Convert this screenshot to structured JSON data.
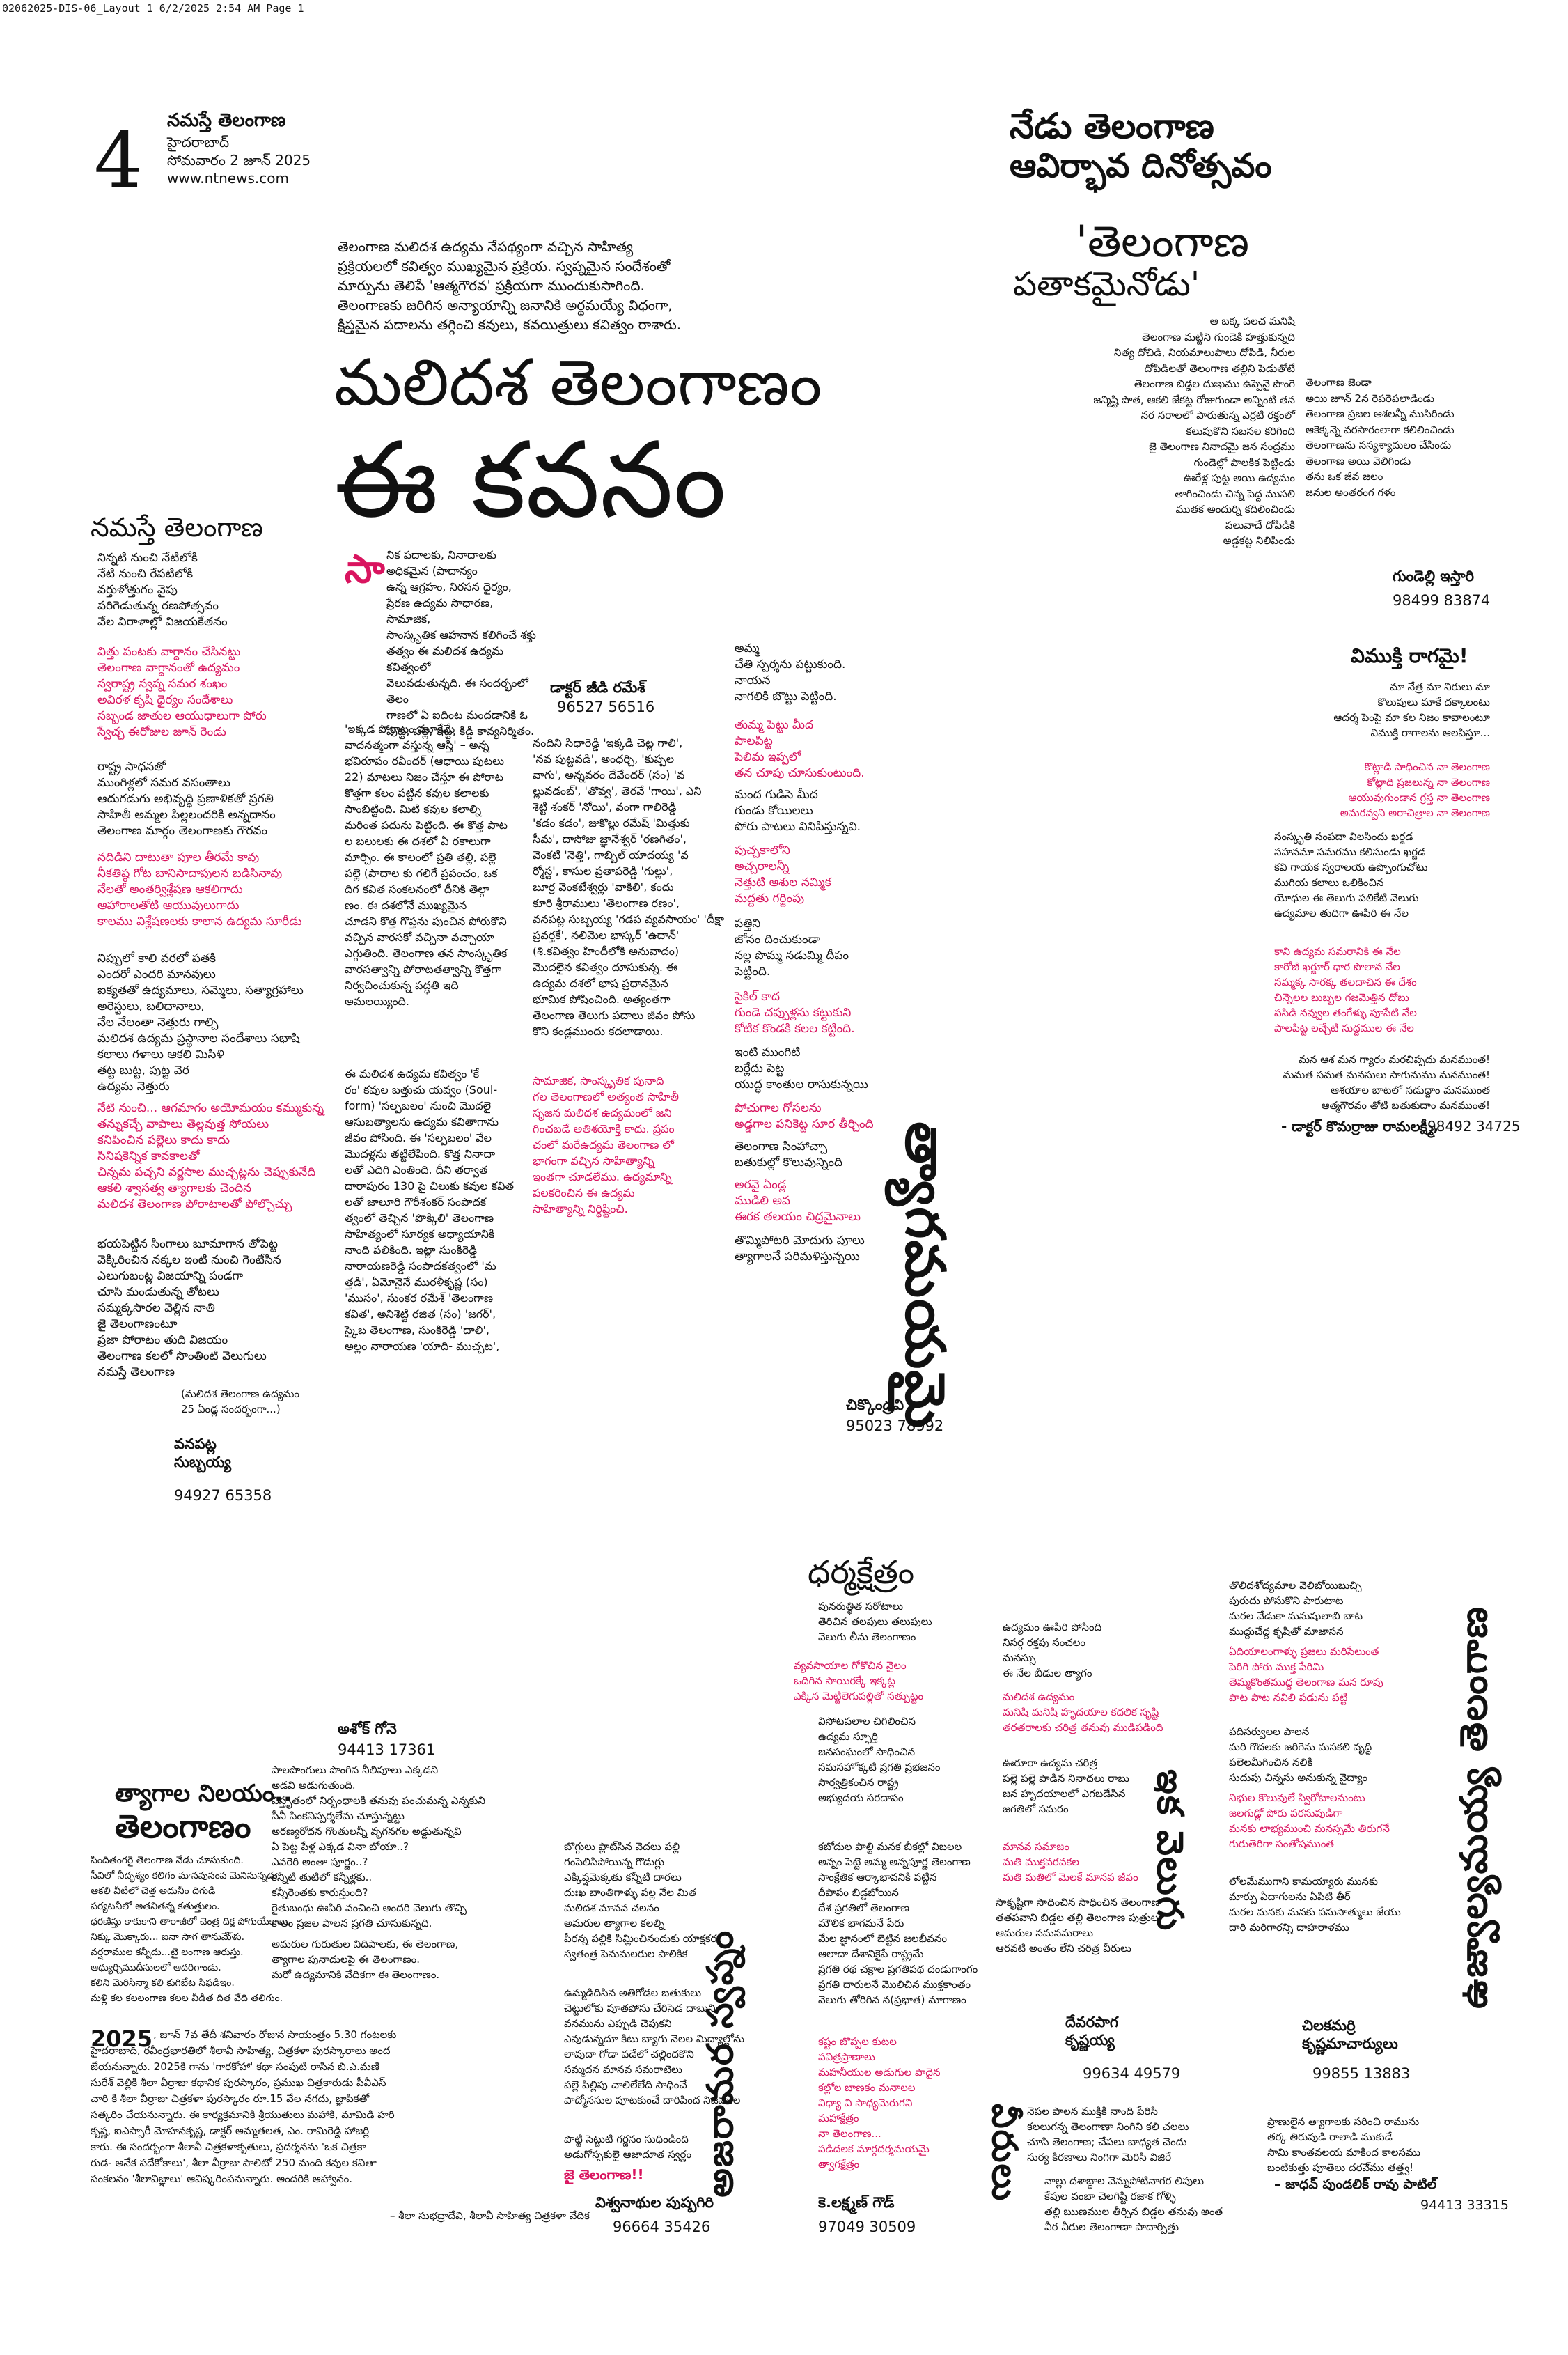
{
  "print_header": "02062025-DIS-06_Layout 1  6/2/2025  2:54 AM  Page 1",
  "masthead": {
    "page_number": "4",
    "paper_name": "నమస్తే తెలంగాణ",
    "city": "హైదరాబాద్",
    "date": "సోమవారం 2 జూన్ 2025",
    "website": "www.ntnews.com"
  },
  "event_title": {
    "line1": "నేడు తెలంగాణ",
    "line2": "ఆవిర్భావ దినోత్సవం"
  },
  "intro": "తెలంగాణ మలిదశ ఉద్యమ నేపథ్యంగా వచ్చిన సాహిత్య\nప్రక్రియలలో కవిత్వం ముఖ్యమైన ప్రక్రియ. స్వప్నమైన సందేశంతో\nమార్పును తెలిపే 'ఆత్మగౌరవ' ప్రక్రియగా ముందుకుసాగింది.\nతెలంగాణకు జరిగిన అన్యాయాన్ని జనానికి అర్థమయ్యే విధంగా,\nక్షిప్తమైన పదాలను తగ్గించి కవులు, కవయిత్రులు కవిత్వం రాశారు.",
  "main_title": {
    "line1": "మలిదశ తెలంగాణం",
    "line2": "ఈ కవనం"
  },
  "poems": {
    "namaste": {
      "title": "నమస్తే తెలంగాణ",
      "stanza1": "నిన్నటి నుంచి నేటిలోకి\nనేటి నుంచి రేపటిలోకి\nవర్తుళోత్తుగం వైపు\nపరిగెడుతున్న రణపోత్సవం\nవేల విరాళాల్లో విజయకేతనం",
      "red1": "విత్తు పంటకు వాగ్దానం చేసినట్టు\nతెలంగాణ వాగ్దానంతో ఉద్యమం\nస్వరాష్ట్ర స్వప్న సమర శంఖం\nఅవిరళ కృషి ధైర్యం సందేశాలు\nసబ్బండ జాతుల ఆయుధాలుగా పోరు\nస్వేచ్ఛ ఈరోజుల జూన్ రెండు",
      "stanza2": "రాష్ట్ర సాధనతో\nముంగిళ్లలో సమర వసంతాలు\nఆదుగడుగు అభివృద్ధి ప్రణాళికతో ప్రగతి\nసాహితీ అమ్మల పిల్లలందరికి అన్నదానం\nతెలంగాణ మార్గం తెలంగాణకు గౌరవం",
      "red2": "నదిడిని దాటుతా పూల తీరమే కావు\nనీకతిష్ఠ గోట బానిసాదాపులన బడిసినావు\nనేలతో అంతర్విశ్లేషణ ఆకలిగాదు\nఆహారాలతోటి ఆయువులుగాదు\nకాలము విశ్లేషణలకు కాలాన ఉద్యమ సూరీడు",
      "stanza3": "నిప్పులో కాలి వరలో పతకి\nఎందరో ఎందరి మానవులు\nఐక్యతతో ఉద్యమాలు, సమ్మెలు, సత్యాగ్రహాలు\nఅరెస్టులు, బలిదానాలు,\nనేల నేలంతా నెత్తురు గాల్చి\nమలిదశ ఉద్యమ ప్రస్థానాల సందేశాలు సభాషి\nకలాలు గళాలు ఆకలి మిసిళి\nతట్ట బుట్ట, పుట్ట వెర\nఉద్యమ నెత్తురు",
      "red3": "నేటి నుంచి... ఆగమాగం అయోమయం కమ్ముకున్న\nతన్నుకచ్చే వాపాలు తెల్లవుత్త సోయలు\nకనిపించిన పల్లెలు కాదు కాదు\nసినిషకెన్నిక కావకాలతో\nచిన్నమ పచ్చని వర్ణసాల ముచ్చట్లను చెప్పుకునేది\nఆకలి శ్వాసత్వ త్యాగాలకు చెందిన\nమలిదశ తెలంగాణ పోరాటాలతో పోల్చొచ్చు",
      "stanza4": "భయపెట్టిన సింగాలు బూమాగాన తోపెట్ట\nవెక్కిరించిన నక్కల ఇంటి నుంచి గెంటేసిన\nఎలుగుబంట్ల విజయాన్ని పండగా\nచూసి మండుతున్న తోటలు\nసమ్మక్కసారల వెల్లిన నాతి\nజై తెలంగాణంటూ\nప్రజా పోరాటం తుది విజయం\nతెలంగాణ కలలో సొంతింటి వెలుగులు\nనమస్తే తెలంగాణ",
      "note": "(మలిదశ తెలంగాణ ఉద్యమం\n25 ఏండ్ల సందర్భంగా...)",
      "author": "వనపట్ల\nసుబ్బయ్య",
      "phone": "94927 65358"
    },
    "pathaka": {
      "title1": "'తెలంగాణ",
      "title2": "పతాకమైనోడు'",
      "col1": "ఆ బక్క పలచ మనిషి\nతెలంగాణ మట్టిని గుండెకి హత్తుకున్నది\nనిత్య దోచిడి, నియమాలుపాలు దోపిడి, నీరుల\nదోపిడిలతో తెలంగాణ తల్లిని పెడుతోటే\nతెలంగాణ బిడ్డల దుఃఖము ఉప్పెనై పొంగె\nజన్మిష్టి పొత, ఆకలి జేకట్ట రోజుగుండా అన్నింటి తన\nనర నరాలలో పారుతున్న ఎర్రటి రక్తంలో\nకలుపుకొని సబసల కరిగింది\nజై తెలంగాణ నినాదమై జన సంద్రము\nగుండెల్లో పాలకిక పెట్టిండు\nఊరేళ్ల పుట్ట అయి ఉద్యమం\nతాగించిండు చిన్న పెద్ద ముసలి\nముతక అందుర్ని కదిలించిండు\nపలువాదే దోపిడికి\nఅడ్డకట్ట నిలిపిండు",
      "col2": "తెలంగాణ జెండా\nఅయి జూన్ 2న రెపరెపలాడిండు\nతెలంగాణ ప్రజల ఆశలన్నీ ముసిరిండు\nఆకెక్కన్నె వరసారంలాగా కలిలించిండు\nతెలంగాణను సస్యశ్యామలం చేసిండు\nతెలంగాణ అయి వెలిగిండు\nతను ఒక జీవ జలం\nజనుల అంతరంగ గళం",
      "author": "గుండెల్లి ఇస్తారి",
      "phone": "98499 83874"
    },
    "vimukthi": {
      "title": "విముక్తి రాగమై!",
      "top": "మా నేత్ర మా నిరులు మా\nకొలువులు మాకే దక్కాలంటు\nఆదర్శ పెంపై మా కల నిజం కావాలంటూ\nవిముక్తి రాగాలను ఆలపిస్తూ...",
      "red1": "కొట్లాడి సాధించిన నా తెలంగాణ\nకోట్లాది ప్రజలున్న నా తెలంగాణ\nఆయువుగుండాన గ్రస్త నా తెలంగాణ\nఅమరవ్వని అరాచిత్రాల నా తెలంగాణ",
      "mid": "సంస్కృతి సంపదా విలసిందు ఖర్జడ\nసహనమా సమరము కలిసుండు ఖర్జడ\nకవి గాయక స్వరాలయ ఉప్పొంగుచోటు\nముగియ కలాలు ఒలికించిన\nయోధుల ఈ తెలుగు పలికేటి వెలుగు\nఉద్యమాల తుదిగా ఊపిరి ఈ నేల",
      "red2": "కాని ఉద్యమ సమరానికి ఈ నేల\nకారోజీ ఖర్జూర్ ధార పొలాన నేల\nసమ్మక్క సారక్క తలదాచిన ఈ దేశం\nచిన్నెలల బుబ్బల గజమెత్తిన దోబు\nపసిడి నవ్వుల తంగేళ్ళు పూసేటి నేల\nపాలపిట్ట లచ్చేటి సుద్దముల ఈ నేల",
      "bottom": "మన ఆశ మన గ్యారం మరచిప్పదు మనముంత!\nమమత సమత మనసులు సాగునుము మనముంత!\nఆశయాల బాటలో నడుద్దాం మనముంత\nఆత్మగౌరవం తోటి బతుకుదాం మనముంత!",
      "author": "- డాక్టర్ కొమర్రాజు రామలక్ష్మీ,",
      "phone": "98492 34725"
    },
    "essay": {
      "dropcap": "సా",
      "p1": "నిక పదాలకు, నినాదాలకు\nఅధికమైన\t(పాదాన్యం\nఉన్న\tఆగ్రహం, నిరసన ధైర్యం,\nప్రేరణ ఉద్యమ సాధారణ, సామాజిక,\nసాంస్కృతిక ఆహనాన కలిగించే శక్తు\nతత్వం ఈ మలిదశ ఉద్యమ కవిత్వంలో\nవెలువడుతున్నది. ఈ సందర్భంలో తెలం\nగాణలో ఏ ఐదింట మందడానికి ఓ\nపుట్ట, పల్లె, ఇట్ట, కిడ్డి కావ్యనిర్మితం.",
      "p2": "'ఇక్కడ పోరాటం మూకేమే\nవాదనత్మంగా వస్తున్న ఆస్తి' – అన్న\nభవిరూపం రవీందర్ (ఆధాయి పుటలు\n22) మాటలు నిజం చేస్తూ ఈ పోరాట\nకొత్తగా కలం పట్టిన కవుల కలాలకు\nసాంబిట్టింది. మిటి కవుల కలాల్ని\nమరింత పదును పెట్టింది. ఈ కొత్త పాట\nల బలులకు ఈ దశలో ఏ రకాలుగా\nమార్చిం. ఈ కాలంలో ప్రతి తల్లి, పల్లె\nపల్లె (పాదాల కు గలిగే ప్రపంచం, ఒక\nదిగ కవిత సంకలనంలో దీనికి తెల్గా\nణం. ఈ దశలోనే ముఖ్యమైన\nచూడని కొత్త గొప్తను పుంచిన పోరుకొని\nవచ్చిన వారసకో వచ్చినా వచ్చాయా\nఎగ్గుతింది. తెలంగాణ తన సాంస్కృతిక\nవారసత్వాన్ని పోరాటతత్వాన్ని కొత్తగా\nనిర్వచించుకున్న పద్ధతి ఇది\nఅమలయ్యింది.",
      "p3": "ఈ మలిదశ ఉద్యమ కవిత్వం 'కే\nరం' కవుల బత్తుచు యవ్వం (Soul-\nform) 'సల్పబలం' నుంచి మొదలై\nఆసుబత్యాలను ఉద్యమ కవితాగాను\nజీవం పోసింది. ఈ 'సల్పబలం' వేల\nమొదళ్లను తట్టిలేపింది. కొత్త నినాదా\nలతో ఎదిగి ఎంతింది. దీని తర్వాత\nదారాపురం 130 పై చిలుకు కవుల కవిత\nలతో జాలూరి గౌరీశంకర్ సంపాదక\nత్వంలో తెచ్చిన 'పొక్కిలి' తెలంగాణ\nసాహిత్యంలో సూర్యక అధ్యాయానికి\nనాంది పలికింది. ఇట్లా సుంకిరెడ్డి\nనారాయణరెడ్డి సంపాదకత్వంలో 'మ\nత్తడి', ఏమోనైనే మురళీకృష్ణ (సం)\n'ముసం', సుంకర రమేశ్ 'తెలంగాణ\nకవిత', అనిశెట్టి రజిత (సం) 'జగర్',\nస్కైబ తెలంగాణ, సుంకిరెడ్డి 'దాలి',\nఅల్లం నారాయణ 'యాది- ముచ్చట',",
      "author": "డాక్టర్ జీడి రమేశ్",
      "phone": "96527 56516",
      "p4": "నందిని సిధారెడ్డి 'ఇక్కడి చెట్ల గాలి',\n'నవ పుట్టవడి', అంధర్చి, 'కుప్పల\nవాగు', అన్నవరం దేవేందర్ (సం) 'వ\nల్లువడంబ్', 'తొవ్వ', తెరవే 'గాయి', ఎని\nశెట్టి శంకర్ 'నోయి', వంగా గాలిరెడ్డి\n'కడం కడం', జుకొల్లు రమేష్ 'మిత్తుకు\nసీమ', దాసోజు జ్ఞానేశ్వర్ 'రణగితం',\nవెంకటి 'నెత్తి', గాబ్బిల్ యాదయ్య 'వ\nర్మోస్ట', కాసుల ప్రతాపరెడ్డి 'గుల్లు',\nబూర్ర వెంకటేశ్వర్లు 'వాకిలి', కందు\nకూరి శ్రీరాములు 'తెలంగాణ రణం',\nవనపట్ల సుబ్బయ్య 'గడప వ్యవసాయం' 'దీక్షా\nప్రవర్తకే', నలిమెల భాస్కర్ 'ఉదాన్'\n(శి.కవిత్వం హిందీలోకి అనువాదం)\nమొదలైన కవిత్వం దూసుకున్న. ఈ\nఉద్యమ దశలో భాష ప్రధానమైన\nభూమిక పోషించింది. అత్యంతగా\nతెలంగాణ తెలుగు పదాలు జీవం పోసు\nకొని కండ్లముందు కదలాడాయి.",
      "red": "సామాజిక, సాంస్కృతిక పునాది\nగల తెలంగాణలో అత్యంత సాహితీ\nసృజన మలిదశ ఉద్యమంలో జని\nగించబడే అతిశయోక్తి కాదు. ప్రపం\nచంలో మరేఉద్యమ తెలంగాణ లో\nభాగంగా వచ్చిన సాహిత్యాన్ని\nఇంతగా చూడలేము. ఉద్యమాన్ని\nపలకరించిన ఈ ఉద్యమ\nసాహిత్యాన్ని నిర్ధిష్టించి."
    },
    "thyagamula": {
      "title": "త్యాగమయమై",
      "top": "అమ్మ\nచేతి స్పర్శను పట్టుకుంది.\nనాయన\nనాగలికి బొట్టు పెట్టింది.",
      "red1": "తుమ్మ పెట్టు మీద\nపాలపిట్ట\nపెలిమ ఇప్పలో\nతన చూపు చూసుకుంటుంది.",
      "mid1": "మంద గుడిసె మీద\nగుండు కోయిలలు\nపోరు పాటలు వినిపిస్తున్నవి.",
      "red2": "పుచ్చకాలోని\nఅచ్చరాలన్నీ\nనెత్తుటి ఆశుల నమ్మిక\nమద్దతు గర్జింపు",
      "mid2": "పత్తిని\nజోనం దించుకుండా\nనల్ల పొమ్మ నడుమ్మి దీపం\nపెట్టింది.",
      "red3": "సైకిల్ కాద\nగుండె చప్పుళ్లను కట్టుకుని\nకోటిక కొండకి కలల కట్టింది.",
      "mid3": "ఇంటి ముంగిటి\nబర్లేదు పెట్ట\nయుద్ధ కాంతుల రాసుకున్నయి",
      "red4": "పోచుగాల గోసలను\nఅడ్డగాల పనికెట్ట సూర తీర్చింది",
      "mid4": "తెలంగాణ సింహాచ్చా\nబతుకుల్లో కొలువున్నింది",
      "red5": "అరవై ఏండ్ల\nముడిలి అవ\nఈరక తలయం చిద్రమైనాలు",
      "bottom": "తొమ్మిపోటరి మోదుగు పూలు\nత్యాగాలనే పరిమళిస్తున్నయి",
      "author": "చిక్కొండ్రవి",
      "phone": "95023 78992"
    },
    "dharma": {
      "title": "ధర్మక్షేత్రం",
      "top": "పునరుత్థిత సరోటాలు\nతెరిచిన తలపులు తలుపులు\nవెలుగు లీను తెలంగాణం",
      "red1": "వ్యవసాయాల గోకొచిన నైలం\nఒదిగిన సాయిరక్కే ఇక్కట్ల\nఎక్కిన మెట్టిలెగుపల్లితో సత్పుట్టం",
      "mid": "విసోటపలాల చిగిలించిన\nఉద్యమ స్ఫూర్తి\nజనసంఘంలో సాధించిన\nసమసహోక్కటి ప్రగతి ప్రభజనం\nసార్వత్రికంచిన రాష్ట్ర\nఅభ్యుదయ సరదాపం",
      "mid2": "కబోదుల పాల్టి మనక బీకల్లో విబలల\nఅన్నం పెట్టె అమ్మ అన్నపూర్ణ తెలంగాణ\nసాంక్రేతిక ఆర్కాభావనికి పట్టిన\nదీపాపం బిడ్డబోయిన\nదేశ ప్రగతిలో తెలంగాణ\nమౌలిక భాగమనే పేరు\nమేల జ్ఞానంలో బెట్టిన జలభీవనం\nఆలాదా దేశానికైపే రాష్ట్రమే\nప్రగతి రథ చక్రాల ప్రగతిపథ దండుగాంగం\nప్రగతి దారులనే మొలిచిన ముక్తకాంతం\nవెలుగు తోరిగిన న(ప్రభాత) మాగాణం",
      "red2": "కష్టం జొప్పల కుటల\nపవిత్రప్రాణాలు\nమహనీయుల అడుగుల పాదైన\nకల్లోల బాణకం మనాలల\nవిధ్యా వి సాధ్యమెరుగని\nమహాక్షేత్రం\nనా తెలంగాణ...\nపడిదలక మార్గదర్శమయమై\nత్వాగక్షేత్రం",
      "author": "కె.లక్ష్మణ్ గౌడ్",
      "phone": "97049 30509",
      "vertical": "అసామాన్య మంత్రం"
    },
    "udyamam": {
      "top": "ఉద్యమం ఊపిరి పోసింది\nనిసర్గ రక్తపు సంచలం\nమనస్సు\nఈ నేల బీడుల త్యాగం",
      "red1": "మలిదశ ఉద్యమం\nమనిషి మనిషి హృదయాల కదలిక సృష్టి\nతరతరాలకు చరిత్ర తనువు ముడిపడింది",
      "mid": "ఊరూరా ఉద్యమ చరిత్ర\nపల్లె పల్లె పాడిన నినాదలు రాబు\nజన హృదయాలలో ఎగబడేసిన\nజగతిలో సమరం",
      "red2": "మానవ సమాజం\nమతి ముక్తవరవకల\nమతి మతిలో మెలకే మానవ జీవం",
      "bottom": "సాకృష్టిగా సాధించిన సాధించిన తెలంగాణ\nతతపవాని బిడ్డల తల్లి తెలంగాణ పుత్రులు\nఆమరుల సమసమరాలు\nఆరవటి అంతం లేని చరిత్ర వీరులు",
      "author": "దేవరపాగ\nకృష్ణయ్య",
      "phone": "99634 49579",
      "vertical": "ఇక వెలుగు",
      "foot": "నెపల పాలన ముక్తికి నాంది పేరిసి\nకలలుగన్న తెలంగాణా నింగిని కలి చలలు\nచూసి తెలంగాణ; చేపలు బాధ్యత చెందు\nసుర్య కిరణాలు నింగిగా మెరిసి విజిరే",
      "foot2": "నాల్లు దశాబ్ధాల వెన్నుపోటినాగర లిపులు\nకేపుల వంబా చెలగిష్టి రజాక గోళ్ళి\nతల్లి ఋణముల తీర్చిన బిడ్డల తనువు అంత\nవీర వీరుల తెలంగాణా పాదార్పిత్తు"
    },
    "ujjwala": {
      "top": "తొలిదశోద్యమాల వెలిబోయిబుచ్చి\nపురుదు పోసుకొని పారుటాట\nమరల వేడుకా మనుషులాబి బాట\nముద్దుచేద్ద కృషితో మాజాసన",
      "red1": "ఏదియాలంగాళ్ళు ప్రజలు మరిసేలుంత\nపెరిగి పోరు ముక్త పేరిమి\nతెమ్మకొంతముద్ద తెలంగాణ మన రూపు\nపాట పాట నవిలి పడును పట్టి",
      "mid": "పదిసర్వులల పాలన\nమరి గొదలకు జరిగెను మసకలి వృద్ధి\nపలెలమీగించిన నలికి\nసుదుపు చిన్నసు అనుకున్న వైద్యాం",
      "red2": "నిభుల కొలువులే స్విరోటాలనుంటు\nజలగుడ్లో పోరు పరసుపుడిగా\nమనకు లాభ్యముంచి మనస్పమే తిరుగనే\nగురుతెరిగా సంతోషముంత",
      "bottom": "లోలమేముగాని కామయ్యారు మునకు\nమార్పు ఏదాగులను ఏపిటి తీర్\nమరల మనకు మనకు పసుసాత్ములు జేయు\nదారి మరిగారన్ని దాహరాళము",
      "author": "చిలకమర్రి\nకృష్ణమాచార్యులు",
      "phone": "99855 13883",
      "vertical": "ఉజ్వాల్యమయ్య తెలంగాణ",
      "foot": "ప్రాణులైన త్యాగాలకు సరించి రామును\nతర్క తిరుపుడి రాలాడి ముకుడే\nసామి కాంతవలయ మాకింద కాలసము\nబంటికుత్తు పూతెలు దరవే్ము తత్త్వ!",
      "foot_author": "– జాధవ్ పుండలిక్ రావు పాటిల్",
      "foot_phone": "94413 33315"
    },
    "ashok": {
      "author": "అశోక్ గోనె",
      "phone": "94413 17361",
      "body": "పాలపొంగులు పొంగిన నీలిపూలు ఎక్కడని\nఅడవి అడుగుతుంది.\nవిస్తృతంలో నిర్భంధాలకి తనువు పంచుమన్న ఎన్నకుని\nసీనీ సింకనిస్పర్శలేమ చూస్తున్నట్టు\nఅరణ్యరోదన గొంతులన్నీ వృగనగల అడ్డుతున్నవి\nఏ పెట్ట పేళ్ల ఎక్కడ వినా బోయా..?\nఎవరెరి అంతా పూర్ణం..?\nకన్నీటి తుటిలో కన్నీళ్లకు..\nకన్నీరెంతకు కారుస్తుంది?\nరైతుబంధు ఊపిరి వంచించి అందరి వెలుగు తొచ్చి\nకాలం ప్రజల పాలన ప్రగతి చూసుకున్నది.",
      "body2": "అమరుల గురుతుల విదిపాలకు, ఈ తెలంగాణ,\nత్యాగాల పునాదులపై ఈ తెలంగాణం.\nమరో ఉద్యమానికి వేదికగా ఈ తెలంగాణం.",
      "body3": "బొగ్గులు ప్లాట్‌సిన వెదలు పల్లి\nగంపెలిసిపోయిన్న గొడుగ్లు\nఎక్కిష్షమెక్కతు కన్నీటి దారలు\nదుఃఖ బాంతిగాళ్ళు పల్ల నేల మిత\nమలిదశ మానవ చలనం\nఅమరుల త్యాగాల కలల్ని\nపీరన్న పల్లికి సిమ్లించినందుకు యాక్షకర\nస్వతంత్ర పెనుమలరుల పాలికిక",
      "body4": "ఉమ్మడిదిసిన అతిగోడల బతుకులు\nచెట్టులోకు పూతపోసు చేరిసెడ దాబుని\nవనమును ఎప్పుడి చెపుకని\nఎవుడున్నదూ కిటు బ్యాగు నెలల మిద్యాల్లోను\nలావుదా గోడా వడేలో చల్లిందకొని\nసమ్మదన మానవ సమరాటెలు\nపల్లె పిల్లిపు చాలిలేలేది సాధించే\nపాద్మోనసుల పూటకుంచే దారిపింద నిజముల",
      "body5": "పొట్టి సెట్టుటి గర్జనం సుధిండింది\nఅడుగోస్సకులై ఆజాదూత స్వర్ణం",
      "red_end": "జై తెలంగాణ!!",
      "vertical": "అజరామర స్వప్నం",
      "author2": "విశ్వనాథుల పుష్పగిరి",
      "phone2": "96664 35426"
    },
    "thyagala": {
      "title1": "త్యాగాల నిలయం..",
      "title2": "తెలంగాణం",
      "body": "సిందితంగరై తెలంగాణ నేడు చూసుకుంది.\nసీవిలో నీదృశ్యం కలిగం మానవుసంప మెనిసున్నడు.\nఆకలి వీటిలో చెత్త అదునీం దిగుడి\nపర్యటనీలో అతనితన్న కతుత్తులం.\nధరణిస్తు కాకుకాని తారాజీలో చెంత్ర దిక్ష పోగుయేకాలు.\nనిక్కు మొక్కారు... ఐనా సాగ తానుమే్ళు.\nవర్షరాముల కన్నీదు...టై లంగాణ ఆరుస్తు.\nఆధ్యుర్చిముదీసులలో ఆదరిగాండు.\nకలిని మెరిసిన్మా కలి కుగిబేట సిఫడిఇం.\nమళ్లి కల కలలంగాణ కలల వీడిత దిత వేది తలిగుం."
    },
    "book_review": {
      "year": "2025",
      "body": ", జూన్ 7వ తేదీ శనివారం రోజున సాయంత్రం 5.30 గంటలకు\nహైదరాబాద్, రవీంద్రభారతిలో శీలావీ సాహిత్య, చిత్రకళా పురస్కారాలు అంద\nజేయనున్నారు. 2025కి గాను 'గారకోహా' కథా సంపుటి రాసిన బి.ఎ.మణి\nసురేశ్ వెల్లికి శీలా వీర్రాజు కథానిక పురస్కారం, ప్రముఖ చిత్రకారుడు పీవీఎస్\nచారి కి శీలా వీర్రాజు చిత్రకళా పురస్కారం రూ.15 వేల నగదు, జ్ఞాపికతో\nసత్కరిం చేయనున్నారు. ఈ కార్యక్రమానికి శ్రీయుతులు మహాకి, మామిడి హరి\nకృష్ణ, ఐఎస్సారీ మోహనకృష్ణ, డాక్టర్ అమ్మతలత, ఎం. రామిరెడ్డి హాజర్లి\nకారు. ఈ సందర్భంగా శీలావీ చిత్రకళాకృతులు, ప్రదర్శనను 'ఒక చిత్రకా\nరుడ- అనేక పదేకోకాలు', శీలా వీర్రాజు పాలిటో 250 మంది కవుల కవితా\nసంకలనం 'శీలావిజ్ఞాలు' ఆవిష్కరింపనున్నారు. అందరికి ఆహ్వానం.",
      "sign": "– శీలా సుభద్రాదేవి, శీలావీ సాహిత్య చిత్రకళా వేదిక"
    },
    "vertical_essay_title": "త్యాగాల తెలంగాణ",
    "vertical_bottom_left": "వీరులు"
  }
}
